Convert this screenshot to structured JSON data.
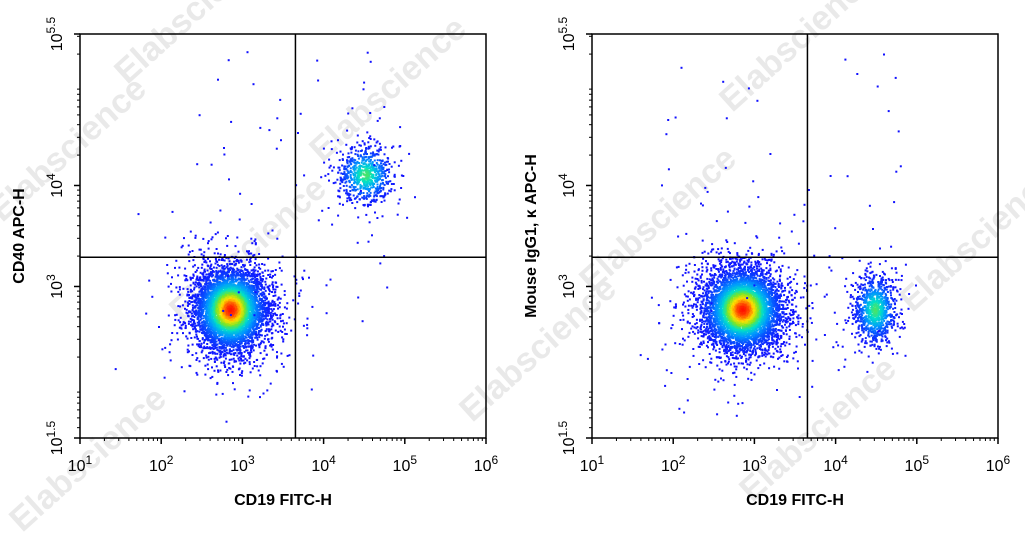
{
  "watermark": "Elabscience",
  "colors": {
    "low": "#1010ff",
    "mid": "#00e0e0",
    "high": "#ffe000",
    "peak": "#ff1000"
  },
  "chart_data": [
    {
      "type": "scatter",
      "subtype": "flow-cytometry-density-dot-plot",
      "xlabel": "CD19 FITC-H",
      "ylabel": "CD40 APC-H",
      "xscale": "log",
      "yscale": "log",
      "xlim": [
        10,
        1000000
      ],
      "ylim": [
        31.6,
        316228
      ],
      "xticks": [
        {
          "base": "10",
          "exp": "1"
        },
        {
          "base": "10",
          "exp": "2"
        },
        {
          "base": "10",
          "exp": "3"
        },
        {
          "base": "10",
          "exp": "4"
        },
        {
          "base": "10",
          "exp": "5"
        },
        {
          "base": "10",
          "exp": "6"
        }
      ],
      "yticks": [
        {
          "value": 31.6,
          "base": "10",
          "exp": "1.5"
        },
        {
          "value": 1000,
          "base": "10",
          "exp": "3"
        },
        {
          "value": 10000,
          "base": "10",
          "exp": "4"
        },
        {
          "value": 316228,
          "base": "10",
          "exp": "5.5"
        }
      ],
      "gate": {
        "x": 4500,
        "y": 1950
      },
      "populations": [
        {
          "center": [
            700,
            600
          ],
          "spread_log": [
            0.22,
            0.2
          ],
          "n": 5200,
          "quadrant": "lower-left"
        },
        {
          "center": [
            32000,
            13000
          ],
          "spread_log": [
            0.17,
            0.14
          ],
          "n": 700,
          "quadrant": "upper-right"
        }
      ]
    },
    {
      "type": "scatter",
      "subtype": "flow-cytometry-density-dot-plot",
      "xlabel": "CD19 FITC-H",
      "ylabel": "Mouse IgG1, κ APC-H",
      "xscale": "log",
      "yscale": "log",
      "xlim": [
        10,
        1000000
      ],
      "ylim": [
        31.6,
        316228
      ],
      "xticks": [
        {
          "base": "10",
          "exp": "1"
        },
        {
          "base": "10",
          "exp": "2"
        },
        {
          "base": "10",
          "exp": "3"
        },
        {
          "base": "10",
          "exp": "4"
        },
        {
          "base": "10",
          "exp": "5"
        },
        {
          "base": "10",
          "exp": "6"
        }
      ],
      "yticks": [
        {
          "value": 31.6,
          "base": "10",
          "exp": "1.5"
        },
        {
          "value": 1000,
          "base": "10",
          "exp": "3"
        },
        {
          "value": 10000,
          "base": "10",
          "exp": "4"
        },
        {
          "value": 316228,
          "base": "10",
          "exp": "5.5"
        }
      ],
      "gate": {
        "x": 4500,
        "y": 1950
      },
      "populations": [
        {
          "center": [
            700,
            600
          ],
          "spread_log": [
            0.24,
            0.2
          ],
          "n": 5200,
          "quadrant": "lower-left"
        },
        {
          "center": [
            30000,
            600
          ],
          "spread_log": [
            0.13,
            0.17
          ],
          "n": 900,
          "quadrant": "lower-right"
        }
      ]
    }
  ]
}
